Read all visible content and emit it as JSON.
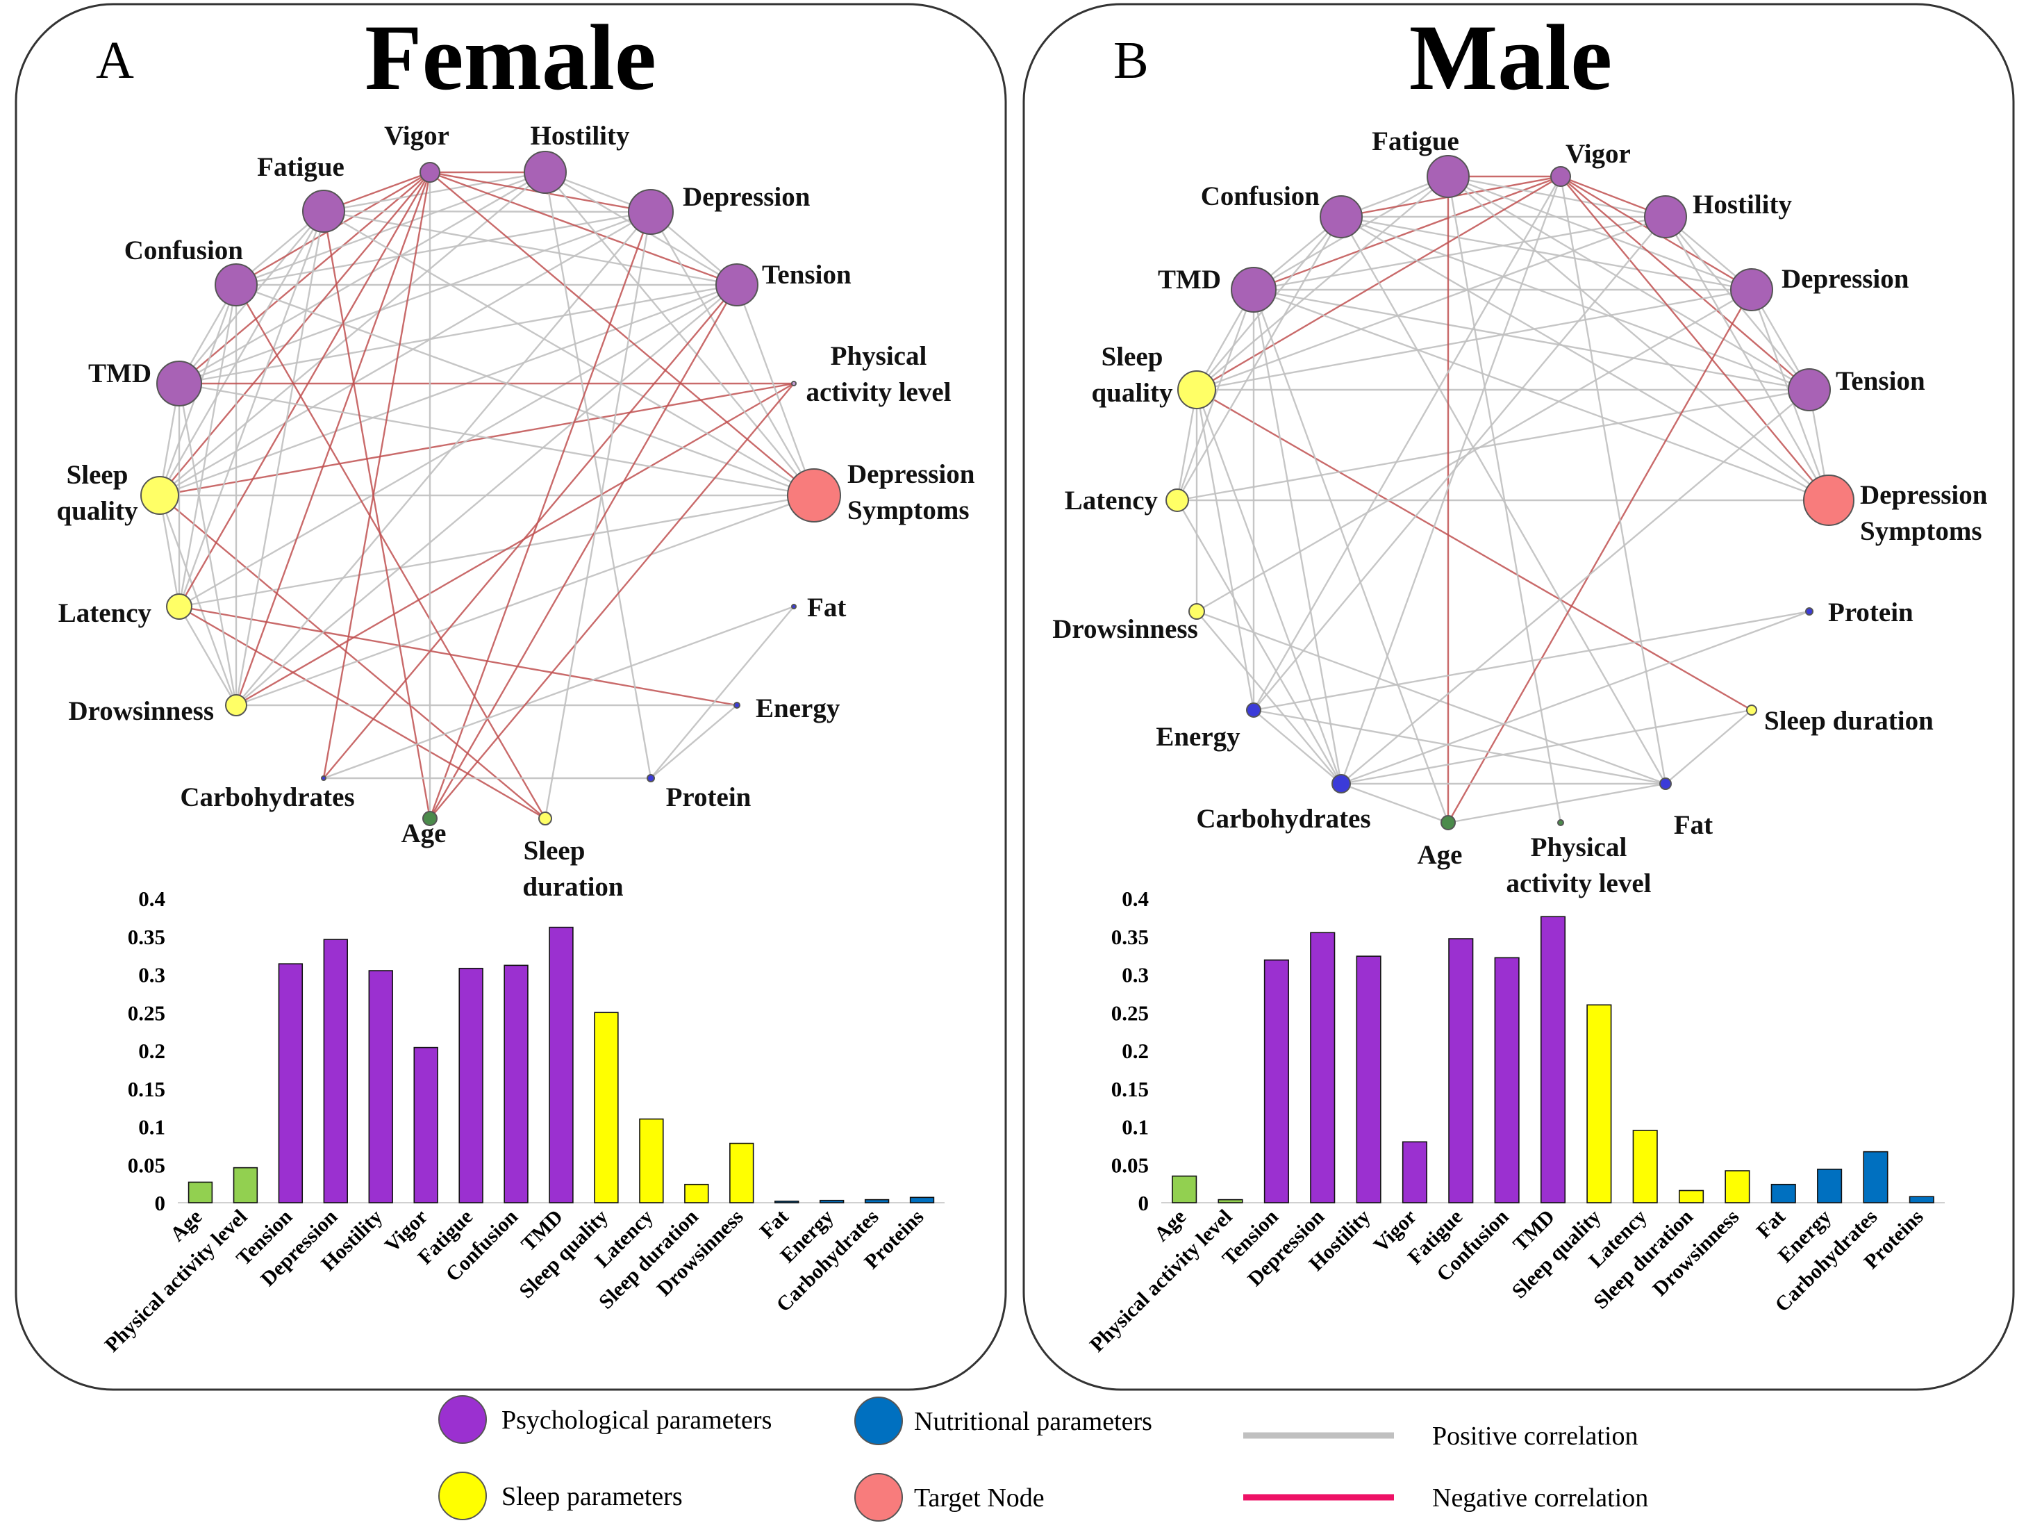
{
  "colors": {
    "psychological": "#9b30d0",
    "psych_node": "#a862b5",
    "sleep": "#ffff00",
    "nutritional": "#0070c0",
    "nutr_node": "#3b3bd9",
    "target": "#f87c7c",
    "age_bar": "#92d050",
    "age_node": "#4b8b4b",
    "positive": "#c0c0c0",
    "negative": "#c05050",
    "legend_negative": "#ee1166"
  },
  "panels": [
    {
      "letter": "A",
      "title": "Female",
      "node_labels": {
        "vigor": "Vigor",
        "hostility": "Hostility",
        "fatigue": "Fatigue",
        "depression": "Depression",
        "confusion": "Confusion",
        "tension": "Tension",
        "tmd": "TMD",
        "phys1": "Physical",
        "phys2": "activity level",
        "sq1": "Sleep",
        "sq2": "quality",
        "ds1": "Depression",
        "ds2": "Symptoms",
        "latency": "Latency",
        "fat": "Fat",
        "drowsiness": "Drowsinness",
        "energy": "Energy",
        "carbs": "Carbohydrates",
        "protein": "Protein",
        "age": "Age",
        "sd1": "Sleep",
        "sd2": "duration"
      }
    },
    {
      "letter": "B",
      "title": "Male",
      "node_labels": {
        "fatigue": "Fatigue",
        "vigor": "Vigor",
        "confusion": "Confusion",
        "hostility": "Hostility",
        "tmd": "TMD",
        "depression": "Depression",
        "sq1": "Sleep",
        "sq2": "quality",
        "tension": "Tension",
        "latency": "Latency",
        "ds1": "Depression",
        "ds2": "Symptoms",
        "drowsiness": "Drowsinness",
        "protein": "Protein",
        "sleepdur": "Sleep duration",
        "energy": "Energy",
        "carbs": "Carbohydrates",
        "fat": "Fat",
        "age": "Age",
        "phys1": "Physical",
        "phys2": "activity level"
      }
    }
  ],
  "chart_data": [
    {
      "type": "bar",
      "title": "Female",
      "categories": [
        "Age",
        "Physical activity level",
        "Tension",
        "Depression",
        "Hostility",
        "Vigor",
        "Fatigue",
        "Confusion",
        "TMD",
        "Sleep quality",
        "Latency",
        "Sleep duration",
        "Drowsinness",
        "Fat",
        "Energy",
        "Carbohydrates",
        "Proteins"
      ],
      "values": [
        0.027,
        0.046,
        0.314,
        0.346,
        0.305,
        0.204,
        0.308,
        0.312,
        0.362,
        0.25,
        0.11,
        0.024,
        0.078,
        0.002,
        0.003,
        0.004,
        0.007
      ],
      "groups": [
        "age",
        "age",
        "psych",
        "psych",
        "psych",
        "psych",
        "psych",
        "psych",
        "psych",
        "sleep",
        "sleep",
        "sleep",
        "sleep",
        "nutr",
        "nutr",
        "nutr",
        "nutr"
      ],
      "yticks": [
        "0",
        "0.05",
        "0.1",
        "0.15",
        "0.2",
        "0.25",
        "0.3",
        "0.35",
        "0.4"
      ],
      "ylim": [
        0,
        0.4
      ]
    },
    {
      "type": "bar",
      "title": "Male",
      "categories": [
        "Age",
        "Physical activity level",
        "Tension",
        "Depression",
        "Hostility",
        "Vigor",
        "Fatigue",
        "Confusion",
        "TMD",
        "Sleep quality",
        "Latency",
        "Sleep duration",
        "Drowsinness",
        "Fat",
        "Energy",
        "Carbohydrates",
        "Proteins"
      ],
      "values": [
        0.035,
        0.004,
        0.319,
        0.355,
        0.324,
        0.08,
        0.347,
        0.322,
        0.376,
        0.26,
        0.095,
        0.016,
        0.042,
        0.024,
        0.044,
        0.067,
        0.008
      ],
      "groups": [
        "age",
        "age",
        "psych",
        "psych",
        "psych",
        "psych",
        "psych",
        "psych",
        "psych",
        "sleep",
        "sleep",
        "sleep",
        "sleep",
        "nutr",
        "nutr",
        "nutr",
        "nutr"
      ],
      "yticks": [
        "0",
        "0.05",
        "0.1",
        "0.15",
        "0.2",
        "0.25",
        "0.3",
        "0.35",
        "0.4"
      ],
      "ylim": [
        0,
        0.4
      ]
    }
  ],
  "legend": {
    "psychological": "Psychological  parameters",
    "sleep": "Sleep parameters",
    "nutritional": "Nutritional parameters",
    "target": "Target Node",
    "positive": "Positive correlation",
    "negative": "Negative correlation"
  }
}
